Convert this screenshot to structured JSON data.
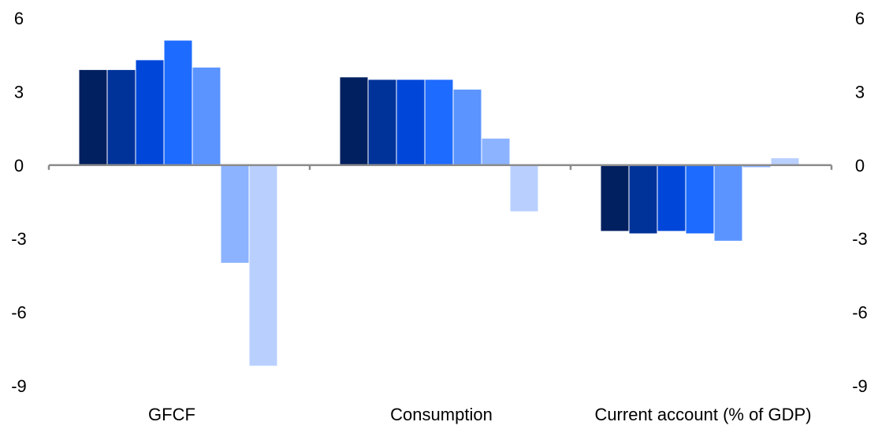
{
  "chart_data": {
    "type": "bar",
    "title": "",
    "xlabel": "",
    "ylabel": "",
    "categories": [
      "GFCF",
      "Consumption",
      "Current account (% of GDP)"
    ],
    "ylim": [
      -9,
      6
    ],
    "yticks": [
      6,
      3,
      0,
      -3,
      -6,
      -9
    ],
    "secondary_axis": true,
    "grid": false,
    "legend": "none",
    "series": [
      {
        "color": "#002060",
        "values": [
          3.9,
          3.6,
          -2.7
        ]
      },
      {
        "color": "#003399",
        "values": [
          3.9,
          3.5,
          -2.8
        ]
      },
      {
        "color": "#0047D9",
        "values": [
          4.3,
          3.5,
          -2.7
        ]
      },
      {
        "color": "#1E6BFF",
        "values": [
          5.1,
          3.5,
          -2.8
        ]
      },
      {
        "color": "#5B94FF",
        "values": [
          4.0,
          3.1,
          -3.1
        ]
      },
      {
        "color": "#8CB3FF",
        "values": [
          -4.0,
          1.1,
          -0.1
        ]
      },
      {
        "color": "#B9D0FF",
        "values": [
          -8.2,
          -1.9,
          0.3
        ]
      }
    ]
  }
}
